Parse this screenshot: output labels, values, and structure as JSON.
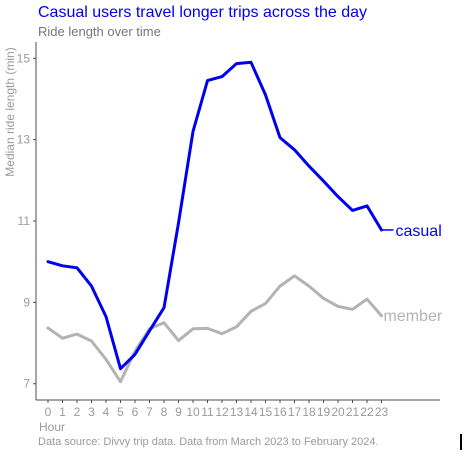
{
  "chart_data": {
    "type": "line",
    "title": "Casual users travel longer trips across the day",
    "subtitle": "Ride length over time",
    "caption": "Data source: Divvy trip data. Data from March 2023 to February 2024.",
    "xlabel": "Hour",
    "ylabel": "Median ride length (min)",
    "categories": [
      "0",
      "1",
      "2",
      "3",
      "4",
      "5",
      "6",
      "7",
      "8",
      "9",
      "10",
      "11",
      "12",
      "13",
      "14",
      "15",
      "16",
      "17",
      "18",
      "19",
      "20",
      "21",
      "22",
      "23"
    ],
    "yticks": [
      7,
      9,
      11,
      13,
      15
    ],
    "ylim": [
      6.6,
      15.4
    ],
    "grid": false,
    "legend": "direct labels at line ends",
    "series": [
      {
        "name": "casual",
        "color": "#0000ee",
        "values": [
          10.0,
          9.9,
          9.85,
          9.4,
          8.65,
          7.37,
          7.72,
          8.3,
          8.87,
          10.95,
          13.2,
          14.45,
          14.55,
          14.87,
          14.9,
          14.1,
          13.05,
          12.75,
          12.35,
          11.98,
          11.6,
          11.26,
          11.37,
          10.78
        ]
      },
      {
        "name": "member",
        "color": "#b3b3b3",
        "values": [
          8.37,
          8.12,
          8.22,
          8.05,
          7.6,
          7.05,
          7.8,
          8.35,
          8.5,
          8.06,
          8.35,
          8.36,
          8.23,
          8.4,
          8.78,
          8.97,
          9.4,
          9.65,
          9.4,
          9.1,
          8.9,
          8.83,
          9.08,
          8.67
        ]
      }
    ]
  }
}
